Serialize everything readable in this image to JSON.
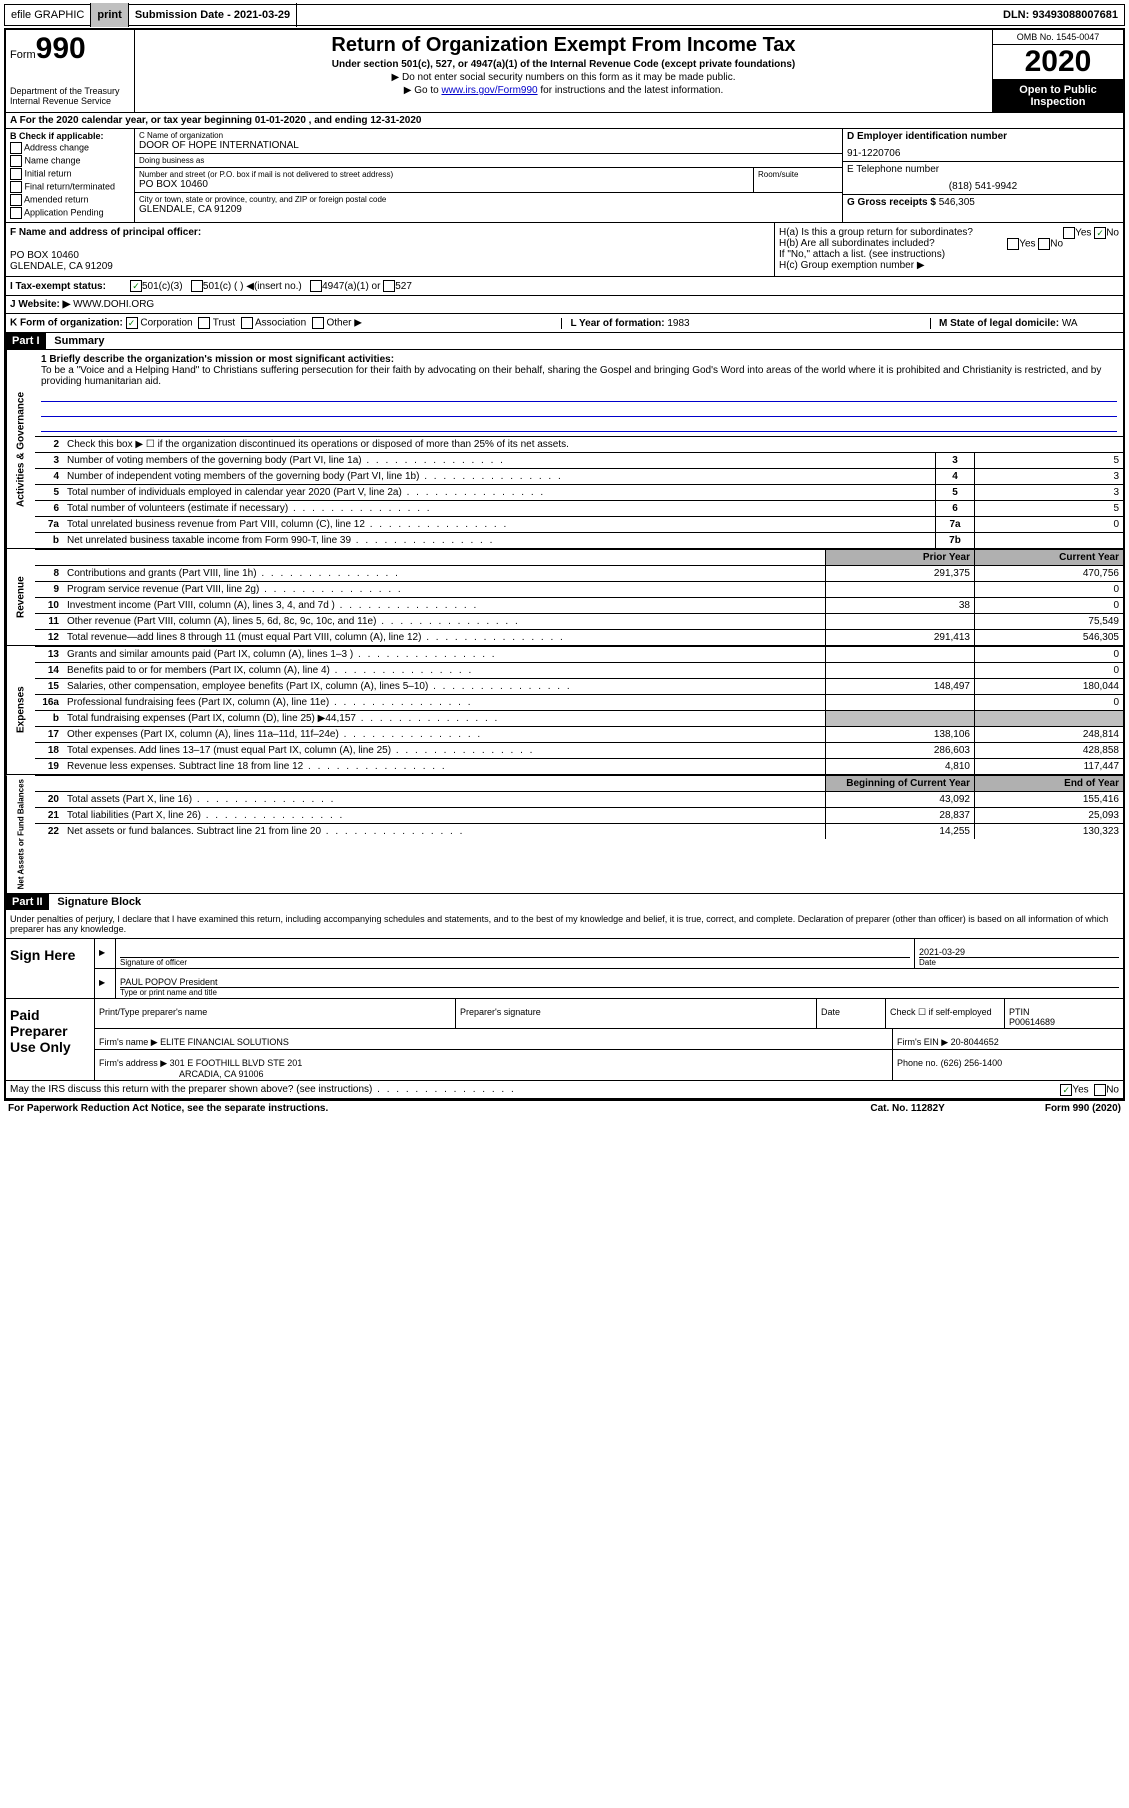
{
  "top_bar": {
    "efile_label": "efile GRAPHIC",
    "print_btn": "print",
    "submission_label": "Submission Date - 2021-03-29",
    "dln": "DLN: 93493088007681"
  },
  "header": {
    "form_label": "Form",
    "form_number": "990",
    "dept": "Department of the Treasury",
    "irs": "Internal Revenue Service",
    "title": "Return of Organization Exempt From Income Tax",
    "subtitle": "Under section 501(c), 527, or 4947(a)(1) of the Internal Revenue Code (except private foundations)",
    "note1": "Do not enter social security numbers on this form as it may be made public.",
    "note2_pre": "Go to ",
    "note2_link": "www.irs.gov/Form990",
    "note2_post": " for instructions and the latest information.",
    "omb": "OMB No. 1545-0047",
    "year": "2020",
    "open_public": "Open to Public Inspection"
  },
  "line_a": "A For the 2020 calendar year, or tax year beginning 01-01-2020    , and ending 12-31-2020",
  "section_b": {
    "title": "B Check if applicable:",
    "opts": [
      "Address change",
      "Name change",
      "Initial return",
      "Final return/terminated",
      "Amended return",
      "Application Pending"
    ]
  },
  "section_c": {
    "name_lbl": "C Name of organization",
    "name": "DOOR OF HOPE INTERNATIONAL",
    "dba_lbl": "Doing business as",
    "dba": "",
    "addr_lbl": "Number and street (or P.O. box if mail is not delivered to street address)",
    "room_lbl": "Room/suite",
    "addr": "PO BOX 10460",
    "city_lbl": "City or town, state or province, country, and ZIP or foreign postal code",
    "city": "GLENDALE, CA  91209"
  },
  "section_d": {
    "ein_lbl": "D Employer identification number",
    "ein": "91-1220706",
    "phone_lbl": "E Telephone number",
    "phone": "(818) 541-9942",
    "gross_lbl": "G Gross receipts $",
    "gross": "546,305"
  },
  "section_f": {
    "lbl": "F  Name and address of principal officer:",
    "addr1": "PO BOX 10460",
    "addr2": "GLENDALE, CA  91209"
  },
  "section_h": {
    "ha": "H(a)  Is this a group return for subordinates?",
    "hb": "H(b)  Are all subordinates included?",
    "hb_note": "If \"No,\" attach a list. (see instructions)",
    "hc": "H(c)  Group exemption number ▶",
    "yes": "Yes",
    "no": "No"
  },
  "section_i": {
    "lbl": "I    Tax-exempt status:",
    "o1": "501(c)(3)",
    "o2": "501(c) (  ) ◀(insert no.)",
    "o3": "4947(a)(1) or",
    "o4": "527"
  },
  "section_j": {
    "lbl": "J   Website: ▶",
    "val": "WWW.DOHI.ORG"
  },
  "section_k": {
    "lbl": "K Form of organization:",
    "opts": [
      "Corporation",
      "Trust",
      "Association",
      "Other ▶"
    ],
    "l_lbl": "L Year of formation:",
    "l_val": "1983",
    "m_lbl": "M State of legal domicile:",
    "m_val": "WA"
  },
  "part1": {
    "header": "Part I",
    "title": "Summary",
    "q1_lbl": "1   Briefly describe the organization's mission or most significant activities:",
    "q1_text": "To be a \"Voice and a Helping Hand\" to Christians suffering persecution for their faith by advocating on their behalf, sharing the Gospel and bringing God's Word into areas of the world where it is prohibited and Christianity is restricted, and by providing humanitarian aid.",
    "q2": "Check this box ▶ ☐  if the organization discontinued its operations or disposed of more than 25% of its net assets.",
    "rows_ag": [
      {
        "n": "3",
        "t": "Number of voting members of the governing body (Part VI, line 1a)",
        "b": "3",
        "v": "5"
      },
      {
        "n": "4",
        "t": "Number of independent voting members of the governing body (Part VI, line 1b)",
        "b": "4",
        "v": "3"
      },
      {
        "n": "5",
        "t": "Total number of individuals employed in calendar year 2020 (Part V, line 2a)",
        "b": "5",
        "v": "3"
      },
      {
        "n": "6",
        "t": "Total number of volunteers (estimate if necessary)",
        "b": "6",
        "v": "5"
      },
      {
        "n": "7a",
        "t": "Total unrelated business revenue from Part VIII, column (C), line 12",
        "b": "7a",
        "v": "0"
      },
      {
        "n": "b",
        "t": "Net unrelated business taxable income from Form 990-T, line 39",
        "b": "7b",
        "v": ""
      }
    ],
    "prior_hdr": "Prior Year",
    "curr_hdr": "Current Year",
    "rows_rev": [
      {
        "n": "8",
        "t": "Contributions and grants (Part VIII, line 1h)",
        "p": "291,375",
        "c": "470,756"
      },
      {
        "n": "9",
        "t": "Program service revenue (Part VIII, line 2g)",
        "p": "",
        "c": "0"
      },
      {
        "n": "10",
        "t": "Investment income (Part VIII, column (A), lines 3, 4, and 7d )",
        "p": "38",
        "c": "0"
      },
      {
        "n": "11",
        "t": "Other revenue (Part VIII, column (A), lines 5, 6d, 8c, 9c, 10c, and 11e)",
        "p": "",
        "c": "75,549"
      },
      {
        "n": "12",
        "t": "Total revenue—add lines 8 through 11 (must equal Part VIII, column (A), line 12)",
        "p": "291,413",
        "c": "546,305"
      }
    ],
    "rows_exp": [
      {
        "n": "13",
        "t": "Grants and similar amounts paid (Part IX, column (A), lines 1–3 )",
        "p": "",
        "c": "0"
      },
      {
        "n": "14",
        "t": "Benefits paid to or for members (Part IX, column (A), line 4)",
        "p": "",
        "c": "0"
      },
      {
        "n": "15",
        "t": "Salaries, other compensation, employee benefits (Part IX, column (A), lines 5–10)",
        "p": "148,497",
        "c": "180,044"
      },
      {
        "n": "16a",
        "t": "Professional fundraising fees (Part IX, column (A), line 11e)",
        "p": "",
        "c": "0"
      },
      {
        "n": "b",
        "t": "Total fundraising expenses (Part IX, column (D), line 25) ▶44,157",
        "p": "shaded",
        "c": "shaded"
      },
      {
        "n": "17",
        "t": "Other expenses (Part IX, column (A), lines 11a–11d, 11f–24e)",
        "p": "138,106",
        "c": "248,814"
      },
      {
        "n": "18",
        "t": "Total expenses. Add lines 13–17 (must equal Part IX, column (A), line 25)",
        "p": "286,603",
        "c": "428,858"
      },
      {
        "n": "19",
        "t": "Revenue less expenses. Subtract line 18 from line 12",
        "p": "4,810",
        "c": "117,447"
      }
    ],
    "na_hdr1": "Beginning of Current Year",
    "na_hdr2": "End of Year",
    "rows_na": [
      {
        "n": "20",
        "t": "Total assets (Part X, line 16)",
        "p": "43,092",
        "c": "155,416"
      },
      {
        "n": "21",
        "t": "Total liabilities (Part X, line 26)",
        "p": "28,837",
        "c": "25,093"
      },
      {
        "n": "22",
        "t": "Net assets or fund balances. Subtract line 21 from line 20",
        "p": "14,255",
        "c": "130,323"
      }
    ],
    "vert_ag": "Activities & Governance",
    "vert_rev": "Revenue",
    "vert_exp": "Expenses",
    "vert_na": "Net Assets or Fund Balances"
  },
  "part2": {
    "header": "Part II",
    "title": "Signature Block",
    "decl": "Under penalties of perjury, I declare that I have examined this return, including accompanying schedules and statements, and to the best of my knowledge and belief, it is true, correct, and complete. Declaration of preparer (other than officer) is based on all information of which preparer has any knowledge.",
    "sign_here": "Sign Here",
    "sig_officer_lbl": "Signature of officer",
    "date_lbl": "Date",
    "date_val": "2021-03-29",
    "name_title": "PAUL POPOV  President",
    "name_title_lbl": "Type or print name and title",
    "paid": "Paid Preparer Use Only",
    "prep_name_lbl": "Print/Type preparer's name",
    "prep_sig_lbl": "Preparer's signature",
    "prep_date_lbl": "Date",
    "check_self": "Check ☐ if self-employed",
    "ptin_lbl": "PTIN",
    "ptin": "P00614689",
    "firm_name_lbl": "Firm's name    ▶",
    "firm_name": "ELITE FINANCIAL SOLUTIONS",
    "firm_ein_lbl": "Firm's EIN ▶",
    "firm_ein": "20-8044652",
    "firm_addr_lbl": "Firm's address ▶",
    "firm_addr": "301 E FOOTHILL BLVD STE 201",
    "firm_city": "ARCADIA, CA  91006",
    "firm_phone_lbl": "Phone no.",
    "firm_phone": "(626) 256-1400",
    "discuss": "May the IRS discuss this return with the preparer shown above? (see instructions)",
    "yes": "Yes",
    "no": "No"
  },
  "footer": {
    "pra": "For Paperwork Reduction Act Notice, see the separate instructions.",
    "cat": "Cat. No. 11282Y",
    "form": "Form 990 (2020)"
  }
}
